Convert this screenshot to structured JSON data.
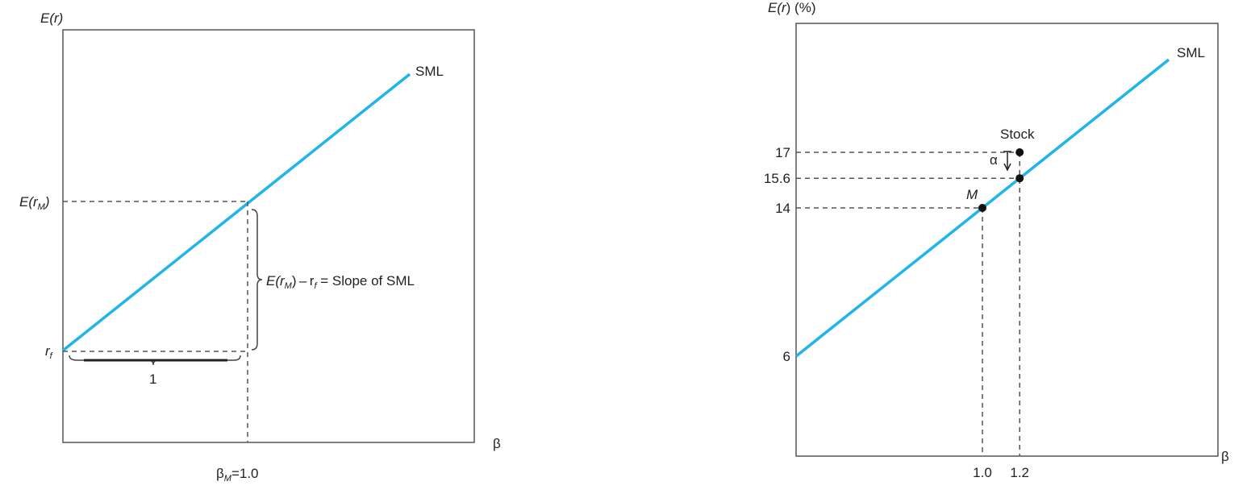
{
  "chart_data": [
    {
      "type": "line",
      "title": "",
      "ylabel": "E(r)",
      "xlabel": "β",
      "series": [
        {
          "name": "SML",
          "x": [
            0,
            1.0
          ],
          "y_labels": [
            "r_f",
            "E(r_M)"
          ]
        }
      ],
      "y_tick_labels": {
        "rf": "r",
        "rf_sub": "f",
        "erm": "E(r",
        "erm_sub": "M",
        "erm_close": ")"
      },
      "x_tick_label": {
        "beta": "β",
        "sub": "M",
        "rest": "=1.0"
      },
      "annotations": {
        "run_label": "1",
        "slope_part1": "E(r",
        "slope_sub1": "M",
        "slope_part2": ") – r",
        "slope_sub2": "f",
        "slope_part3": " = Slope of SML"
      },
      "line_label": "SML"
    },
    {
      "type": "line",
      "title": "",
      "ylabel": "E(r) (%)",
      "xlabel": "β",
      "series": [
        {
          "name": "SML",
          "x": [
            0,
            1.0,
            1.2
          ],
          "y": [
            6,
            14,
            15.6
          ]
        }
      ],
      "points": [
        {
          "label": "M",
          "x": 1.0,
          "y": 14
        },
        {
          "label": "Stock",
          "x": 1.2,
          "y": 17
        },
        {
          "label": "",
          "x": 1.2,
          "y": 15.6
        }
      ],
      "y_ticks": [
        6,
        14,
        15.6,
        17
      ],
      "y_tick_labels": [
        "6",
        "14",
        "15.6",
        "17"
      ],
      "x_ticks": [
        1.0,
        1.2
      ],
      "x_tick_labels": [
        "1.0",
        "1.2"
      ],
      "alpha_label": "α",
      "line_label": "SML"
    }
  ],
  "left": {
    "ylabel": {
      "e": "E(",
      "r": "r",
      "close": ")"
    },
    "xlabel": "β"
  },
  "right": {
    "ylabel": {
      "e": "E(",
      "r": "r",
      "close": ") (%)"
    },
    "xlabel": "β",
    "stock_label": "Stock",
    "m_label": "M"
  },
  "colors": {
    "sml": "#1fb4ea",
    "axis": "#555555",
    "text": "#222222"
  }
}
